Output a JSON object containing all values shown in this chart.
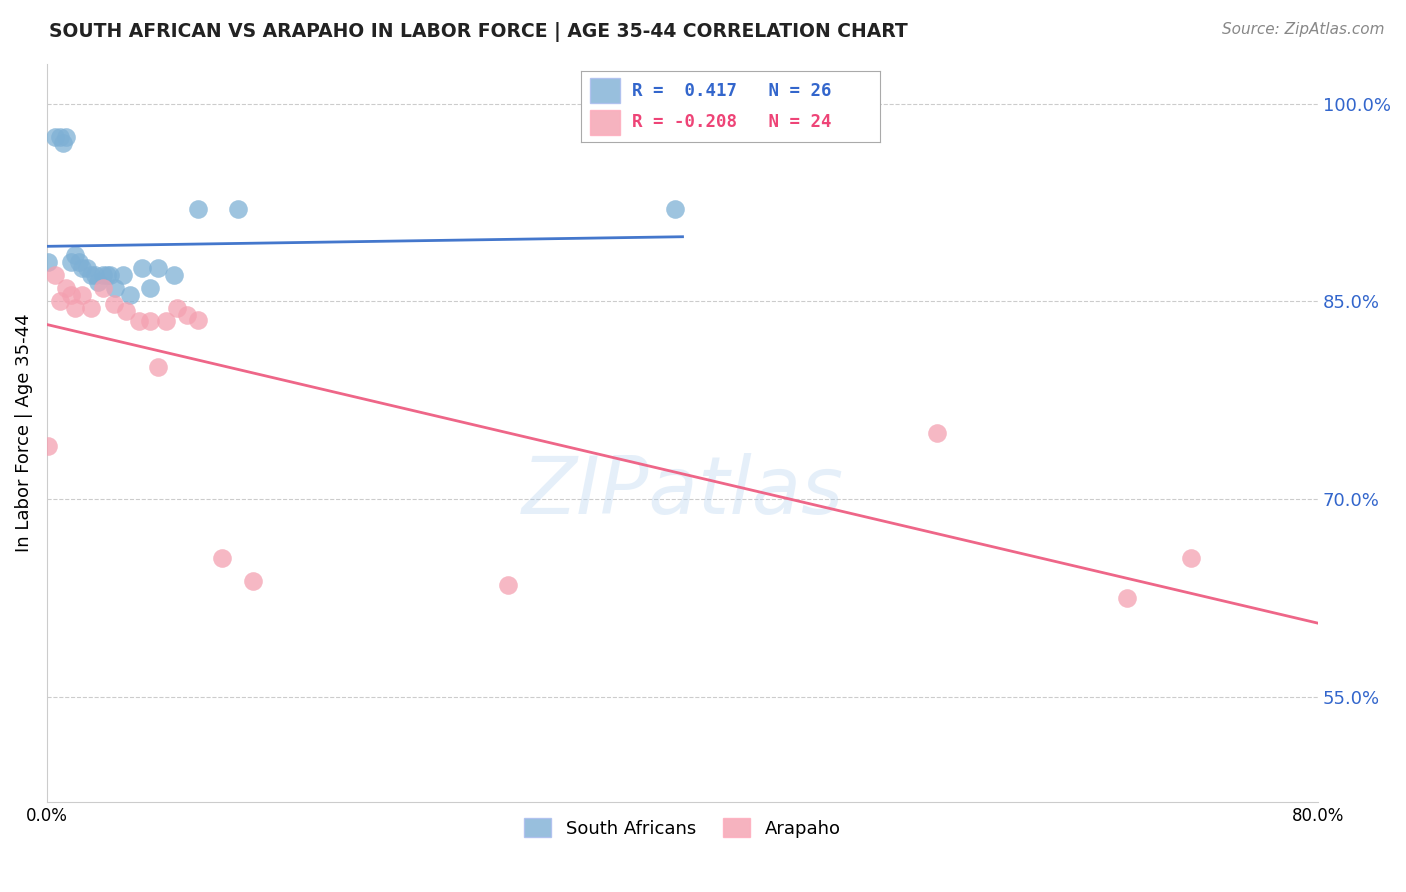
{
  "title": "SOUTH AFRICAN VS ARAPAHO IN LABOR FORCE | AGE 35-44 CORRELATION CHART",
  "source": "Source: ZipAtlas.com",
  "ylabel": "In Labor Force | Age 35-44",
  "xlim": [
    0.0,
    0.8
  ],
  "ylim": [
    0.47,
    1.03
  ],
  "yticks": [
    0.55,
    0.7,
    0.85,
    1.0
  ],
  "ytick_labels": [
    "55.0%",
    "70.0%",
    "85.0%",
    "100.0%"
  ],
  "xticks": [
    0.0,
    0.1,
    0.2,
    0.3,
    0.4,
    0.5,
    0.6,
    0.7,
    0.8
  ],
  "xtick_labels": [
    "0.0%",
    "",
    "",
    "",
    "",
    "",
    "",
    "",
    "80.0%"
  ],
  "blue_color": "#7EB0D5",
  "pink_color": "#F4A0B0",
  "blue_line_color": "#4477CC",
  "pink_line_color": "#EE6688",
  "legend_R_blue": "0.417",
  "legend_N_blue": "26",
  "legend_R_pink": "-0.208",
  "legend_N_pink": "24",
  "watermark": "ZIPatlas",
  "south_africans_x": [
    0.001,
    0.005,
    0.008,
    0.01,
    0.012,
    0.015,
    0.018,
    0.02,
    0.022,
    0.025,
    0.028,
    0.03,
    0.032,
    0.035,
    0.038,
    0.04,
    0.043,
    0.048,
    0.052,
    0.06,
    0.065,
    0.07,
    0.08,
    0.095,
    0.12,
    0.395
  ],
  "south_africans_y": [
    0.88,
    0.975,
    0.975,
    0.97,
    0.975,
    0.88,
    0.885,
    0.88,
    0.875,
    0.875,
    0.87,
    0.87,
    0.865,
    0.87,
    0.87,
    0.87,
    0.86,
    0.87,
    0.855,
    0.875,
    0.86,
    0.875,
    0.87,
    0.92,
    0.92,
    0.92
  ],
  "arapaho_x": [
    0.001,
    0.005,
    0.008,
    0.012,
    0.015,
    0.018,
    0.022,
    0.028,
    0.035,
    0.042,
    0.05,
    0.058,
    0.065,
    0.07,
    0.075,
    0.082,
    0.088,
    0.095,
    0.11,
    0.13,
    0.29,
    0.56,
    0.68,
    0.72
  ],
  "arapaho_y": [
    0.74,
    0.87,
    0.85,
    0.86,
    0.855,
    0.845,
    0.855,
    0.845,
    0.86,
    0.848,
    0.843,
    0.835,
    0.835,
    0.8,
    0.835,
    0.845,
    0.84,
    0.836,
    0.655,
    0.638,
    0.635,
    0.75,
    0.625,
    0.655
  ]
}
